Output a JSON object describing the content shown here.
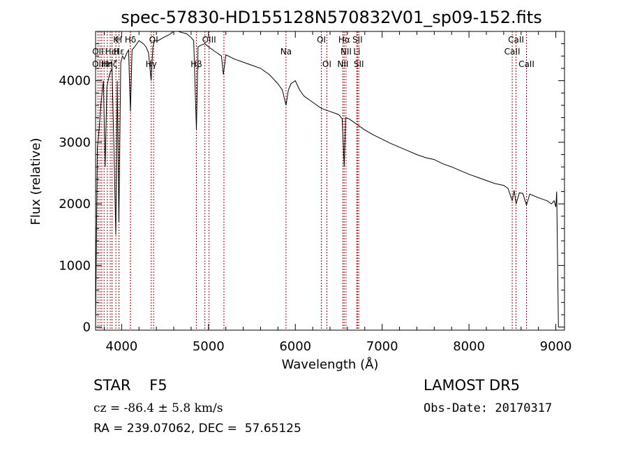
{
  "chart_data": {
    "type": "line",
    "title": "spec-57830-HD155128N570832V01_sp09-152.fits",
    "xlabel": "Wavelength (Å)",
    "ylabel": "Flux (relative)",
    "xlim": [
      3700,
      9100
    ],
    "ylim": [
      -50,
      4800
    ],
    "xticks": [
      4000,
      5000,
      6000,
      7000,
      8000,
      9000
    ],
    "yticks": [
      0,
      1000,
      2000,
      3000,
      4000
    ],
    "grid": false,
    "series": [
      {
        "x": [
          3700,
          3720,
          3740,
          3760,
          3790,
          3810,
          3830,
          3860,
          3890,
          3910,
          3933,
          3950,
          3968,
          3990,
          4010,
          4030,
          4060,
          4080,
          4101,
          4120,
          4150,
          4200,
          4250,
          4280,
          4310,
          4340,
          4360,
          4380,
          4420,
          4480,
          4550,
          4600,
          4650,
          4700,
          4750,
          4800,
          4830,
          4861,
          4880,
          4920,
          4960,
          5000,
          5050,
          5100,
          5150,
          5172,
          5200,
          5300,
          5400,
          5500,
          5600,
          5700,
          5800,
          5850,
          5893,
          5920,
          5950,
          6000,
          6050,
          6100,
          6200,
          6300,
          6400,
          6500,
          6540,
          6563,
          6580,
          6620,
          6700,
          6800,
          6900,
          7000,
          7100,
          7200,
          7300,
          7400,
          7500,
          7600,
          7700,
          7800,
          7900,
          8000,
          8100,
          8200,
          8300,
          8400,
          8450,
          8498,
          8520,
          8542,
          8580,
          8620,
          8662,
          8700,
          8800,
          8900,
          8950,
          8980,
          9000,
          9010,
          9030
        ],
        "y": [
          0,
          2900,
          3200,
          3600,
          4000,
          2600,
          3900,
          4100,
          4200,
          3000,
          1500,
          4000,
          1700,
          4300,
          4400,
          4350,
          4450,
          4500,
          3500,
          4500,
          4550,
          4650,
          4600,
          4550,
          4450,
          4000,
          4550,
          4650,
          4650,
          4700,
          4750,
          4800,
          4800,
          4780,
          4760,
          4700,
          4650,
          3200,
          4550,
          4580,
          4600,
          4550,
          4500,
          4450,
          4400,
          4100,
          4420,
          4350,
          4300,
          4250,
          4200,
          4100,
          3950,
          3850,
          3600,
          3850,
          3950,
          4000,
          3850,
          3750,
          3650,
          3550,
          3500,
          3450,
          3380,
          2600,
          3400,
          3380,
          3300,
          3200,
          3120,
          3050,
          2980,
          2920,
          2860,
          2800,
          2750,
          2720,
          2650,
          2600,
          2540,
          2480,
          2430,
          2380,
          2330,
          2300,
          2250,
          2050,
          2220,
          2000,
          2180,
          2170,
          1980,
          2160,
          2100,
          2050,
          2000,
          2050,
          1950,
          2200,
          0
        ]
      }
    ],
    "annotations": [
      {
        "label": "Hδ",
        "x": 4101,
        "row": 0
      },
      {
        "label": "K",
        "x": 3934,
        "row": 0
      },
      {
        "label": "H",
        "x": 3969,
        "row": 0
      },
      {
        "label": "OI",
        "x": 4368,
        "row": 0
      },
      {
        "label": "OIII",
        "x": 5007,
        "row": 0
      },
      {
        "label": "OI",
        "x": 6300,
        "row": 0
      },
      {
        "label": "Hα",
        "x": 6563,
        "row": 0
      },
      {
        "label": "SII",
        "x": 6716,
        "row": 0
      },
      {
        "label": "CaII",
        "x": 8542,
        "row": 0
      },
      {
        "label": "OII",
        "x": 3727,
        "row": 1
      },
      {
        "label": "HeI",
        "x": 3889,
        "row": 1
      },
      {
        "label": "Hε",
        "x": 3970,
        "row": 1
      },
      {
        "label": "Na",
        "x": 5893,
        "row": 1
      },
      {
        "label": "NII",
        "x": 6584,
        "row": 1
      },
      {
        "label": "Li",
        "x": 6708,
        "row": 1
      },
      {
        "label": "CaII",
        "x": 8498,
        "row": 1
      },
      {
        "label": "OIII",
        "x": 3740,
        "row": 2
      },
      {
        "label": "Hη",
        "x": 3835,
        "row": 2
      },
      {
        "label": "Hζ",
        "x": 3889,
        "row": 2
      },
      {
        "label": "Hγ",
        "x": 4340,
        "row": 2
      },
      {
        "label": "Hβ",
        "x": 4861,
        "row": 2
      },
      {
        "label": "OI",
        "x": 6363,
        "row": 2
      },
      {
        "label": "NII",
        "x": 6548,
        "row": 2
      },
      {
        "label": "SII",
        "x": 6731,
        "row": 2
      },
      {
        "label": "CaII",
        "x": 8662,
        "row": 2
      }
    ],
    "line_markers": [
      3727,
      3750,
      3771,
      3798,
      3835,
      3869,
      3889,
      3934,
      3969,
      4101,
      4102,
      4340,
      4368,
      4861,
      4959,
      5007,
      5178,
      5893,
      6300,
      6363,
      6548,
      6563,
      6584,
      6708,
      6716,
      6731,
      8498,
      8542,
      8662
    ]
  },
  "info": {
    "class_text": "STAR    F5",
    "survey": "LAMOST DR5",
    "cz": "cz = -86.4 ± 5.8 km/s",
    "obs_date": "Obs-Date: 20170317",
    "ra_dec": "RA = 239.07062, DEC =  57.65125"
  },
  "colors": {
    "axes": "#000000",
    "spectrum": "#000000",
    "markers": "#b00000"
  }
}
